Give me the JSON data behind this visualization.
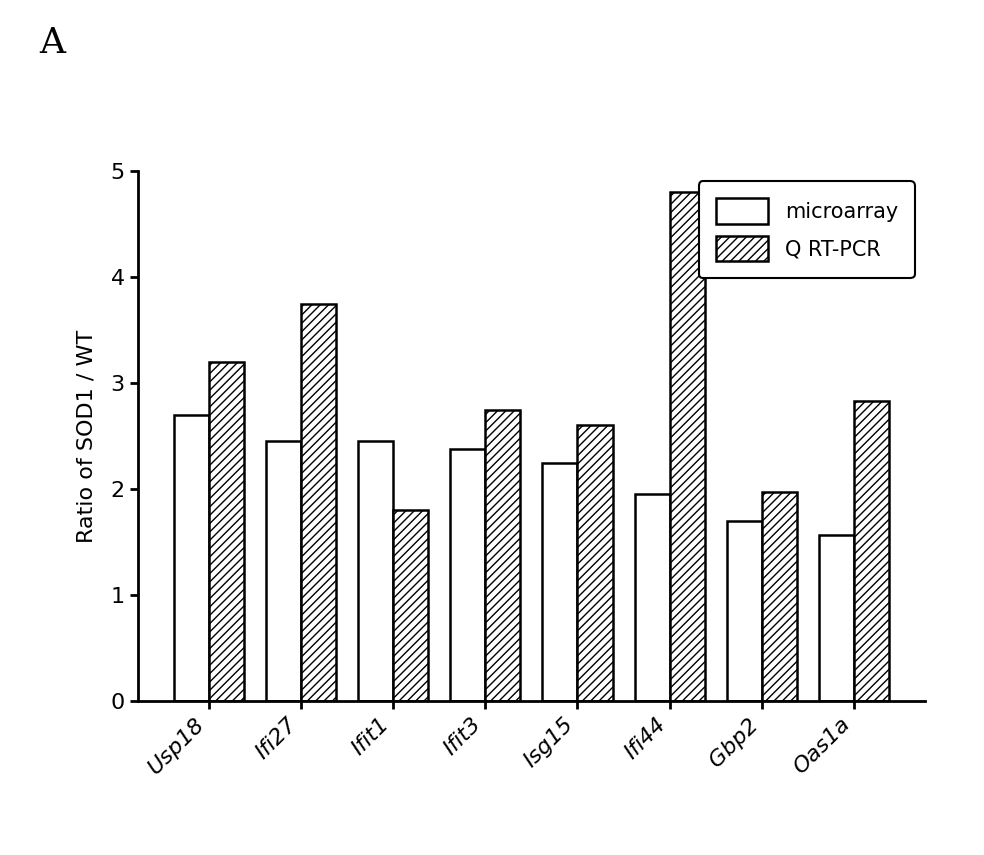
{
  "categories": [
    "Usp18",
    "Ifi27",
    "Ifit1",
    "Ifit3",
    "Isg15",
    "Ifi44",
    "Gbp2",
    "Oas1a"
  ],
  "microarray": [
    2.7,
    2.45,
    2.45,
    2.38,
    2.25,
    1.95,
    1.7,
    1.57
  ],
  "qrtpcr": [
    3.2,
    3.75,
    1.8,
    2.75,
    2.6,
    4.8,
    1.97,
    2.83
  ],
  "microarray_color": "#ffffff",
  "microarray_edgecolor": "#000000",
  "qrtpcr_color": "#ffffff",
  "qrtpcr_edgecolor": "#000000",
  "ylabel": "Ratio of SOD1 / WT",
  "ylim": [
    0,
    5
  ],
  "yticks": [
    0,
    1,
    2,
    3,
    4,
    5
  ],
  "panel_label": "A",
  "legend_labels": [
    "microarray",
    "Q RT-PCR"
  ],
  "bar_width": 0.38,
  "figsize": [
    9.84,
    8.55
  ],
  "dpi": 100,
  "background_color": "#ffffff",
  "hatch_pattern": "////"
}
